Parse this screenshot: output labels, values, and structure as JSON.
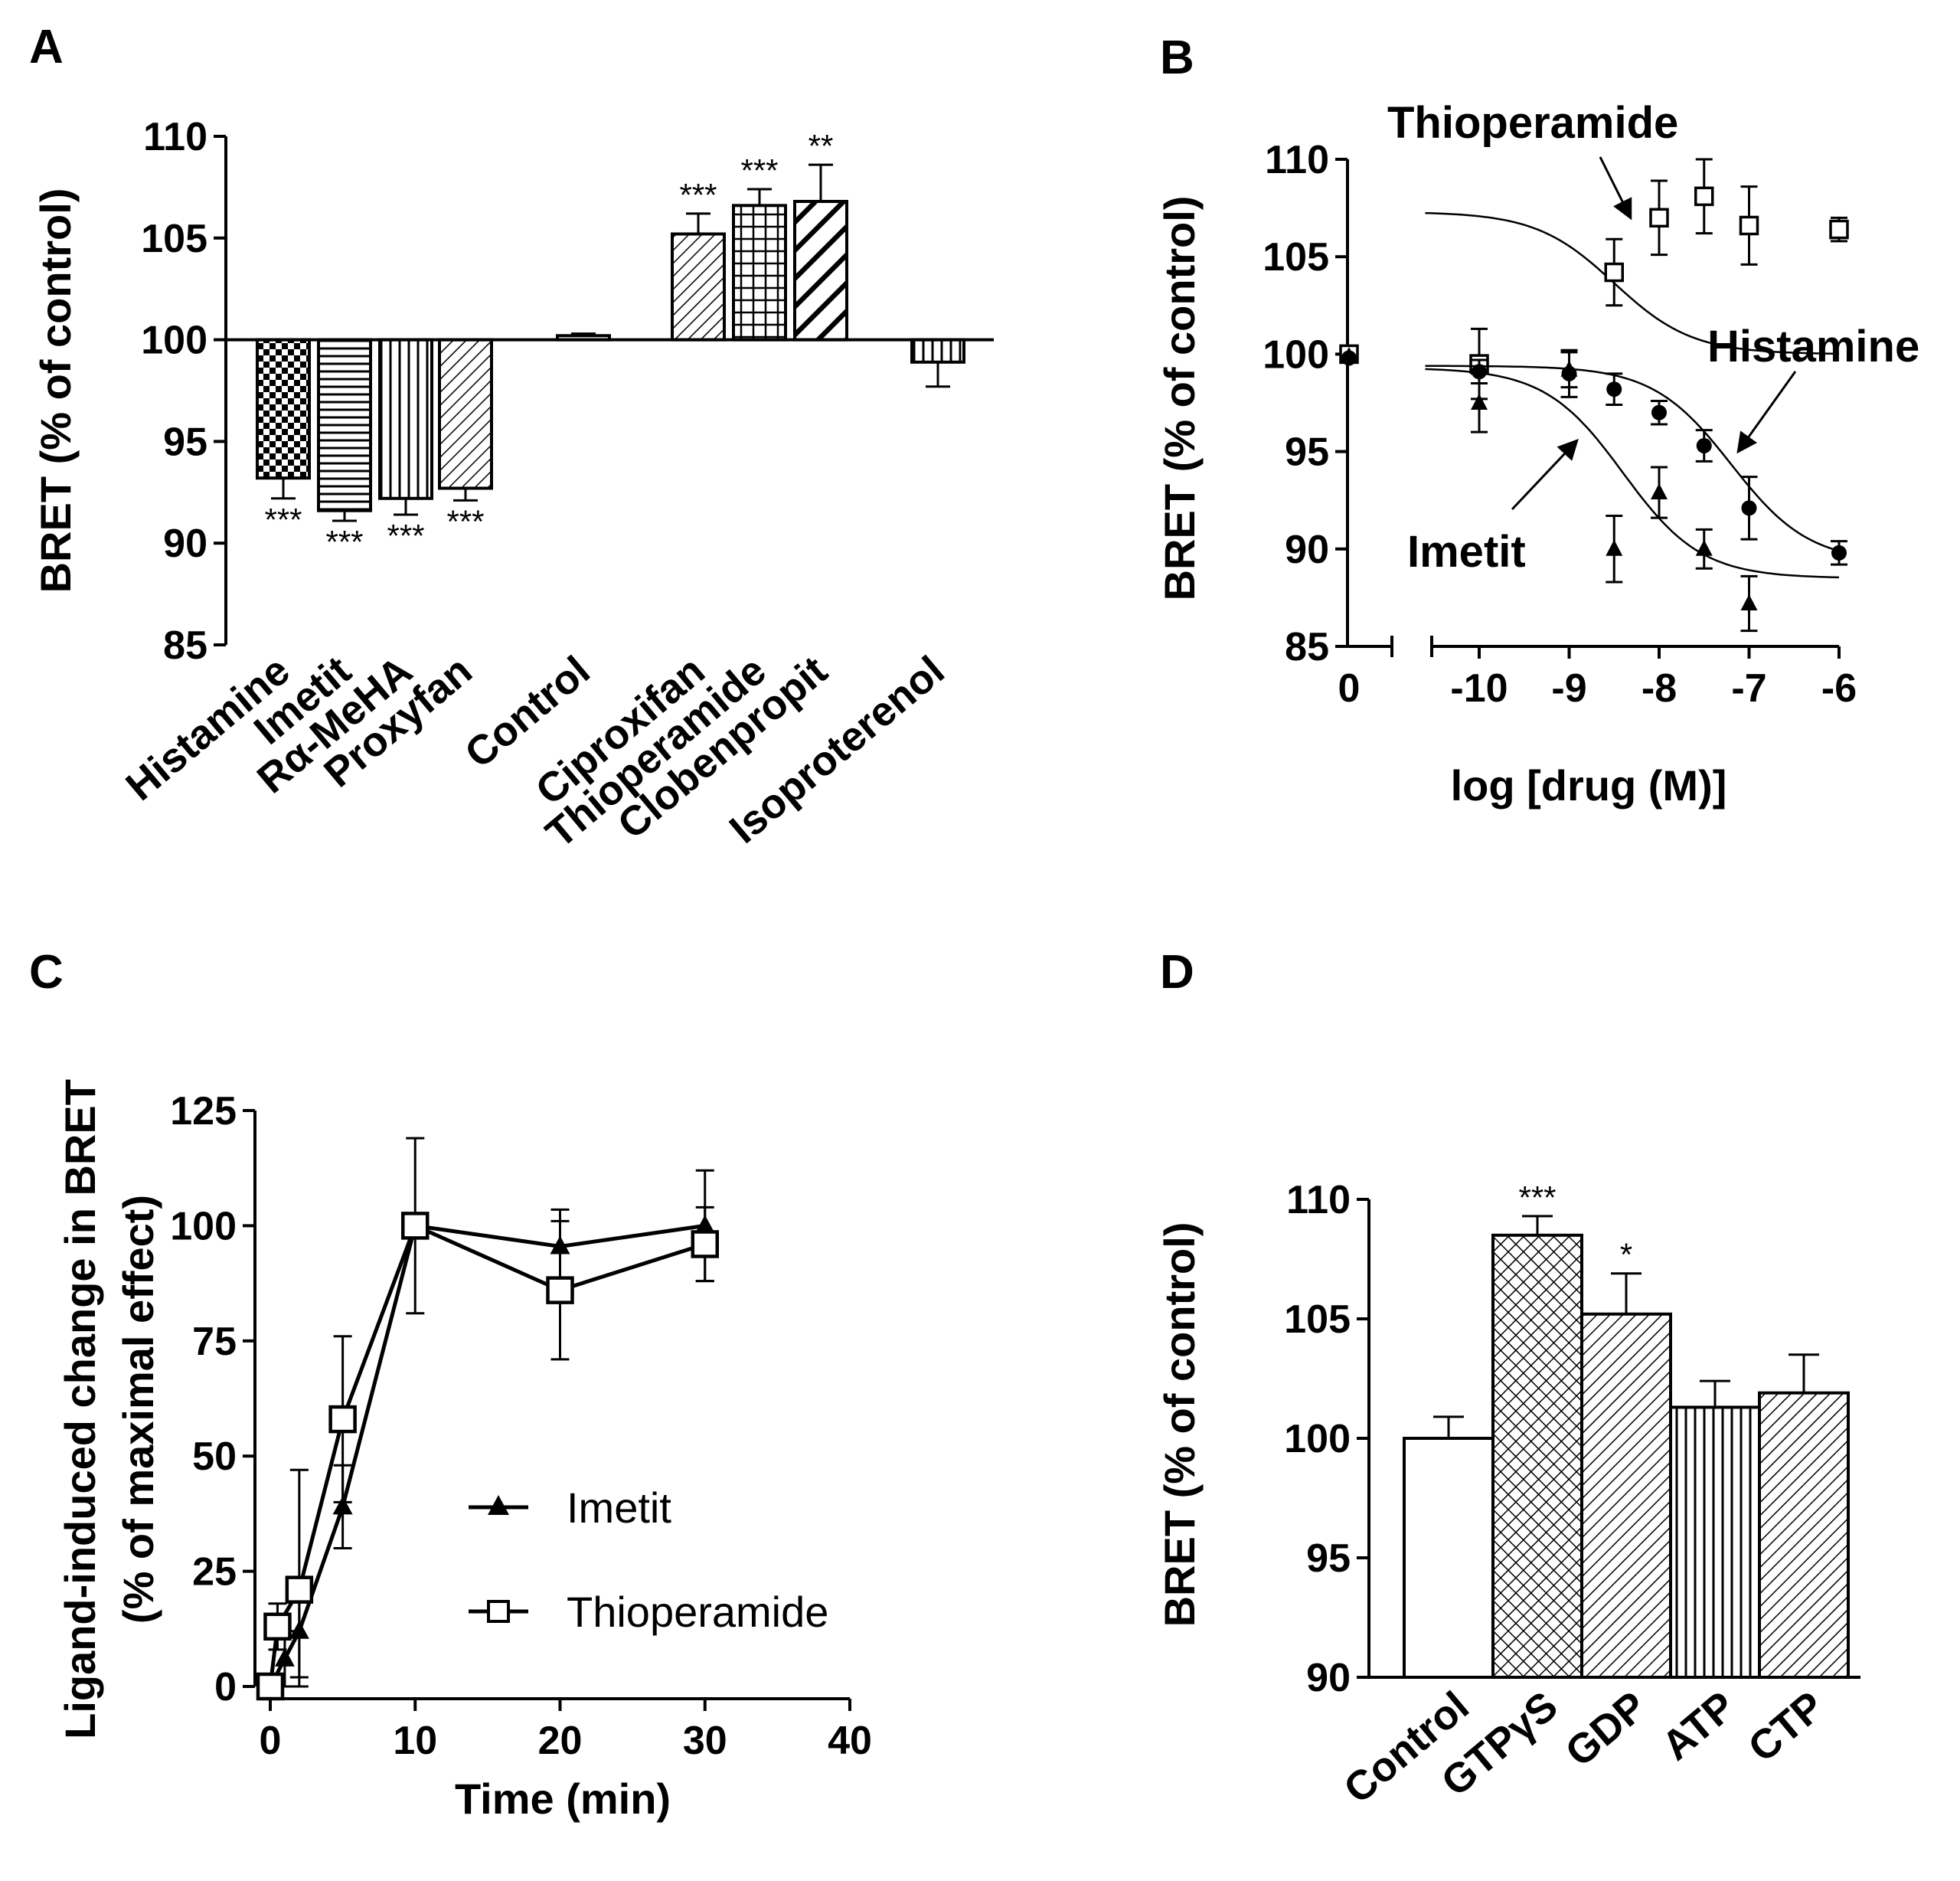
{
  "chart_data": [
    {
      "panel": "A",
      "type": "bar",
      "ylabel": "BRET (% of control)",
      "ylim": [
        85,
        110
      ],
      "yticks": [
        110,
        105,
        100,
        95,
        90,
        85
      ],
      "baseline": 100,
      "categories": [
        "Histamine",
        "Imetit",
        "Rα-MeHA",
        "Proxyfan",
        "Control",
        "Ciproxifan",
        "Thioperamide",
        "Clobenpropit",
        "Isoproterenol"
      ],
      "values": [
        93.2,
        91.6,
        92.2,
        92.7,
        100.2,
        105.2,
        106.6,
        106.8,
        98.9
      ],
      "errors": [
        1.0,
        0.5,
        0.8,
        0.6,
        0.1,
        1.0,
        0.8,
        1.8,
        1.2
      ],
      "significance": [
        "***",
        "***",
        "***",
        "***",
        "",
        "***",
        "***",
        "**",
        ""
      ],
      "patterns": [
        "checker",
        "hlines",
        "vlines",
        "diag",
        "none",
        "diag",
        "grid",
        "diagbold",
        "vlines"
      ]
    },
    {
      "panel": "B",
      "type": "line",
      "xlabel": "log [drug (M)]",
      "ylabel": "BRET (% of control)",
      "ylim": [
        85,
        110
      ],
      "yticks": [
        110,
        105,
        100,
        95,
        90,
        85
      ],
      "xticks": [
        "0",
        "-10",
        "-9",
        "-8",
        "-7",
        "-6"
      ],
      "xtick_values": [
        -10,
        -9,
        -8,
        -7,
        -6
      ],
      "series": [
        {
          "name": "Thioperamide",
          "marker": "open-square",
          "control": 100.0,
          "x": [
            -10,
            -8.5,
            -8,
            -7.5,
            -7,
            -6
          ],
          "y": [
            99.5,
            104.2,
            107.0,
            108.1,
            106.6,
            106.4
          ],
          "err": [
            1.8,
            1.7,
            1.9,
            1.9,
            2.0,
            0.6
          ],
          "fit": {
            "bottom": 100.0,
            "top": 107.3,
            "logEC50": -8.5,
            "hill": 1
          }
        },
        {
          "name": "Histamine",
          "marker": "filled-circle",
          "control": 99.8,
          "x": [
            -10,
            -9,
            -8.5,
            -8,
            -7.5,
            -7,
            -6
          ],
          "y": [
            99.1,
            99.0,
            98.2,
            97.0,
            95.3,
            92.1,
            89.8
          ],
          "err": [
            0.6,
            1.2,
            0.8,
            0.6,
            0.8,
            1.6,
            0.6
          ],
          "fit": {
            "bottom": 89.3,
            "top": 99.4,
            "logEC50": -7.2,
            "hill": 1
          }
        },
        {
          "name": "Imetit",
          "marker": "filled-triangle",
          "control": 99.9,
          "x": [
            -10,
            -9,
            -8.5,
            -8,
            -7.5,
            -7
          ],
          "y": [
            97.5,
            99.2,
            90.0,
            92.9,
            90.0,
            87.2
          ],
          "err": [
            1.5,
            0.9,
            1.7,
            1.3,
            1.0,
            1.4
          ],
          "fit": {
            "bottom": 88.5,
            "top": 99.3,
            "logEC50": -8.4,
            "hill": 1
          }
        }
      ],
      "annotations": [
        "Thioperamide",
        "Histamine",
        "Imetit"
      ]
    },
    {
      "panel": "C",
      "type": "line",
      "xlabel": "Time (min)",
      "ylabel": "Ligand-induced change in BRET",
      "ylabel2": "(% of maximal effect)",
      "xlim": [
        0,
        40
      ],
      "ylim": [
        0,
        125
      ],
      "xticks": [
        0,
        10,
        20,
        30,
        40
      ],
      "yticks": [
        0,
        25,
        50,
        75,
        100,
        125
      ],
      "series": [
        {
          "name": "Imetit",
          "marker": "filled-triangle",
          "x": [
            0,
            1,
            2,
            5,
            10,
            20,
            30
          ],
          "y": [
            0,
            6,
            12,
            39,
            100,
            95.5,
            100
          ],
          "err": [
            0,
            6,
            10,
            9,
            1,
            8,
            12
          ]
        },
        {
          "name": "Thioperamide",
          "marker": "open-square",
          "x": [
            0,
            0.5,
            2,
            5,
            10,
            20,
            30
          ],
          "y": [
            0,
            13,
            21,
            58,
            100,
            86,
            96
          ],
          "err": [
            0,
            5,
            26,
            18,
            19,
            15,
            8
          ]
        }
      ]
    },
    {
      "panel": "D",
      "type": "bar",
      "ylabel": "BRET (% of control)",
      "ylim": [
        90,
        110
      ],
      "yticks": [
        110,
        105,
        100,
        95,
        90
      ],
      "categories": [
        "Control",
        "GTPγS",
        "GDP",
        "ATP",
        "CTP"
      ],
      "values": [
        100.0,
        108.5,
        105.2,
        101.3,
        101.9
      ],
      "errors": [
        0.9,
        0.8,
        1.7,
        1.1,
        1.6
      ],
      "significance": [
        "",
        "***",
        "*",
        "",
        ""
      ],
      "patterns": [
        "none",
        "crosshatch",
        "diag",
        "vlines",
        "diag"
      ]
    }
  ]
}
